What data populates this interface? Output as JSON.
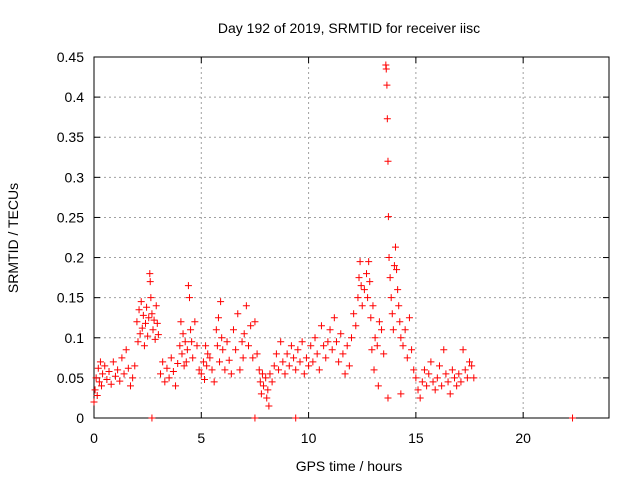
{
  "chart_data": {
    "type": "scatter",
    "title": "Day 192 of 2019, SRMTID for receiver iisc",
    "xlabel": "GPS time / hours",
    "ylabel": "SRMTID / TECUs",
    "xlim": [
      0,
      24
    ],
    "ylim": [
      0,
      0.45
    ],
    "xticks": [
      0,
      5,
      10,
      15,
      20
    ],
    "yticks": [
      0,
      0.05,
      0.1,
      0.15,
      0.2,
      0.25,
      0.3,
      0.35,
      0.4,
      0.45
    ],
    "grid": true,
    "marker": "+",
    "color": "#ff0000",
    "series": [
      {
        "name": "iisc",
        "points": [
          [
            0.0,
            0.02
          ],
          [
            0.05,
            0.035
          ],
          [
            0.1,
            0.05
          ],
          [
            0.15,
            0.028
          ],
          [
            0.2,
            0.062
          ],
          [
            0.25,
            0.045
          ],
          [
            0.3,
            0.07
          ],
          [
            0.35,
            0.04
          ],
          [
            0.4,
            0.055
          ],
          [
            0.5,
            0.065
          ],
          [
            0.6,
            0.048
          ],
          [
            0.7,
            0.058
          ],
          [
            0.8,
            0.042
          ],
          [
            0.9,
            0.07
          ],
          [
            1.0,
            0.052
          ],
          [
            1.1,
            0.06
          ],
          [
            1.2,
            0.046
          ],
          [
            1.3,
            0.075
          ],
          [
            1.4,
            0.055
          ],
          [
            1.5,
            0.085
          ],
          [
            1.6,
            0.062
          ],
          [
            1.7,
            0.04
          ],
          [
            1.8,
            0.05
          ],
          [
            1.9,
            0.065
          ],
          [
            2.0,
            0.12
          ],
          [
            2.05,
            0.095
          ],
          [
            2.1,
            0.135
          ],
          [
            2.15,
            0.105
          ],
          [
            2.2,
            0.145
          ],
          [
            2.25,
            0.112
          ],
          [
            2.3,
            0.128
          ],
          [
            2.35,
            0.09
          ],
          [
            2.4,
            0.118
          ],
          [
            2.45,
            0.138
          ],
          [
            2.5,
            0.102
          ],
          [
            2.55,
            0.125
          ],
          [
            2.6,
            0.18
          ],
          [
            2.62,
            0.17
          ],
          [
            2.65,
            0.15
          ],
          [
            2.7,
            0.13
          ],
          [
            2.75,
            0.11
          ],
          [
            2.8,
            0.122
          ],
          [
            2.85,
            0.098
          ],
          [
            2.9,
            0.14
          ],
          [
            2.95,
            0.118
          ],
          [
            3.0,
            0.104
          ],
          [
            2.7,
            0.0
          ],
          [
            3.1,
            0.055
          ],
          [
            3.2,
            0.07
          ],
          [
            3.3,
            0.045
          ],
          [
            3.4,
            0.062
          ],
          [
            3.5,
            0.05
          ],
          [
            3.6,
            0.075
          ],
          [
            3.7,
            0.058
          ],
          [
            3.8,
            0.04
          ],
          [
            3.9,
            0.068
          ],
          [
            4.0,
            0.09
          ],
          [
            4.05,
            0.12
          ],
          [
            4.1,
            0.08
          ],
          [
            4.15,
            0.105
          ],
          [
            4.2,
            0.065
          ],
          [
            4.25,
            0.095
          ],
          [
            4.3,
            0.07
          ],
          [
            4.35,
            0.085
          ],
          [
            4.4,
            0.165
          ],
          [
            4.45,
            0.15
          ],
          [
            4.5,
            0.11
          ],
          [
            4.55,
            0.095
          ],
          [
            4.6,
            0.075
          ],
          [
            4.7,
            0.12
          ],
          [
            4.8,
            0.09
          ],
          [
            4.9,
            0.06
          ],
          [
            5.0,
            0.055
          ],
          [
            5.1,
            0.07
          ],
          [
            5.15,
            0.048
          ],
          [
            5.2,
            0.09
          ],
          [
            5.25,
            0.065
          ],
          [
            5.3,
            0.08
          ],
          [
            5.4,
            0.075
          ],
          [
            5.5,
            0.06
          ],
          [
            5.6,
            0.045
          ],
          [
            5.7,
            0.11
          ],
          [
            5.75,
            0.09
          ],
          [
            5.8,
            0.125
          ],
          [
            5.85,
            0.07
          ],
          [
            5.9,
            0.145
          ],
          [
            5.95,
            0.1
          ],
          [
            6.0,
            0.085
          ],
          [
            6.1,
            0.06
          ],
          [
            6.2,
            0.095
          ],
          [
            6.3,
            0.072
          ],
          [
            6.4,
            0.055
          ],
          [
            6.5,
            0.11
          ],
          [
            6.6,
            0.085
          ],
          [
            6.7,
            0.13
          ],
          [
            6.8,
            0.06
          ],
          [
            6.9,
            0.095
          ],
          [
            6.95,
            0.075
          ],
          [
            7.0,
            0.105
          ],
          [
            7.1,
            0.14
          ],
          [
            7.2,
            0.09
          ],
          [
            7.3,
            0.115
          ],
          [
            7.4,
            0.075
          ],
          [
            7.5,
            0.12
          ],
          [
            7.6,
            0.08
          ],
          [
            7.7,
            0.06
          ],
          [
            7.75,
            0.045
          ],
          [
            7.8,
            0.03
          ],
          [
            7.85,
            0.055
          ],
          [
            7.9,
            0.04
          ],
          [
            8.0,
            0.05
          ],
          [
            8.05,
            0.025
          ],
          [
            8.1,
            0.035
          ],
          [
            8.15,
            0.015
          ],
          [
            8.2,
            0.055
          ],
          [
            8.3,
            0.045
          ],
          [
            8.4,
            0.065
          ],
          [
            8.5,
            0.08
          ],
          [
            8.6,
            0.06
          ],
          [
            8.7,
            0.095
          ],
          [
            8.8,
            0.07
          ],
          [
            8.9,
            0.055
          ],
          [
            7.5,
            0.0
          ],
          [
            9.0,
            0.08
          ],
          [
            9.1,
            0.065
          ],
          [
            9.2,
            0.09
          ],
          [
            9.3,
            0.075
          ],
          [
            9.4,
            0.06
          ],
          [
            9.5,
            0.085
          ],
          [
            9.6,
            0.07
          ],
          [
            9.7,
            0.095
          ],
          [
            9.8,
            0.055
          ],
          [
            9.9,
            0.075
          ],
          [
            9.4,
            0.0
          ],
          [
            10.0,
            0.065
          ],
          [
            10.1,
            0.09
          ],
          [
            10.2,
            0.07
          ],
          [
            10.3,
            0.1
          ],
          [
            10.4,
            0.08
          ],
          [
            10.5,
            0.06
          ],
          [
            10.6,
            0.115
          ],
          [
            10.7,
            0.09
          ],
          [
            10.8,
            0.075
          ],
          [
            10.9,
            0.095
          ],
          [
            11.0,
            0.11
          ],
          [
            11.1,
            0.085
          ],
          [
            11.2,
            0.125
          ],
          [
            11.3,
            0.095
          ],
          [
            11.4,
            0.07
          ],
          [
            11.5,
            0.105
          ],
          [
            11.6,
            0.08
          ],
          [
            11.7,
            0.055
          ],
          [
            11.8,
            0.09
          ],
          [
            11.9,
            0.065
          ],
          [
            12.0,
            0.1
          ],
          [
            12.1,
            0.13
          ],
          [
            12.2,
            0.115
          ],
          [
            12.3,
            0.15
          ],
          [
            12.35,
            0.175
          ],
          [
            12.4,
            0.195
          ],
          [
            12.45,
            0.165
          ],
          [
            12.5,
            0.14
          ],
          [
            12.6,
            0.16
          ],
          [
            12.7,
            0.18
          ],
          [
            12.75,
            0.15
          ],
          [
            12.8,
            0.195
          ],
          [
            12.85,
            0.17
          ],
          [
            12.9,
            0.125
          ],
          [
            12.95,
            0.085
          ],
          [
            13.0,
            0.14
          ],
          [
            13.05,
            0.06
          ],
          [
            13.1,
            0.1
          ],
          [
            13.2,
            0.09
          ],
          [
            13.25,
            0.04
          ],
          [
            13.3,
            0.12
          ],
          [
            13.4,
            0.11
          ],
          [
            13.5,
            0.08
          ],
          [
            13.6,
            0.44
          ],
          [
            13.62,
            0.435
          ],
          [
            13.65,
            0.415
          ],
          [
            13.67,
            0.373
          ],
          [
            13.7,
            0.32
          ],
          [
            13.72,
            0.251
          ],
          [
            13.75,
            0.2
          ],
          [
            13.8,
            0.175
          ],
          [
            13.85,
            0.15
          ],
          [
            13.9,
            0.13
          ],
          [
            13.95,
            0.11
          ],
          [
            13.7,
            0.025
          ],
          [
            14.0,
            0.19
          ],
          [
            14.05,
            0.213
          ],
          [
            14.1,
            0.185
          ],
          [
            14.15,
            0.16
          ],
          [
            14.2,
            0.14
          ],
          [
            14.25,
            0.12
          ],
          [
            14.3,
            0.1
          ],
          [
            14.4,
            0.09
          ],
          [
            14.5,
            0.11
          ],
          [
            14.6,
            0.075
          ],
          [
            14.7,
            0.125
          ],
          [
            14.8,
            0.085
          ],
          [
            14.9,
            0.06
          ],
          [
            14.3,
            0.03
          ],
          [
            15.0,
            0.05
          ],
          [
            15.1,
            0.035
          ],
          [
            15.2,
            0.025
          ],
          [
            15.3,
            0.045
          ],
          [
            15.4,
            0.06
          ],
          [
            15.5,
            0.04
          ],
          [
            15.6,
            0.055
          ],
          [
            15.7,
            0.07
          ],
          [
            15.8,
            0.045
          ],
          [
            15.9,
            0.035
          ],
          [
            16.0,
            0.05
          ],
          [
            16.1,
            0.065
          ],
          [
            16.2,
            0.04
          ],
          [
            16.3,
            0.085
          ],
          [
            16.4,
            0.055
          ],
          [
            16.5,
            0.045
          ],
          [
            16.6,
            0.03
          ],
          [
            16.7,
            0.06
          ],
          [
            16.8,
            0.05
          ],
          [
            16.9,
            0.04
          ],
          [
            17.0,
            0.055
          ],
          [
            17.1,
            0.045
          ],
          [
            17.2,
            0.085
          ],
          [
            17.3,
            0.06
          ],
          [
            17.4,
            0.05
          ],
          [
            17.5,
            0.07
          ],
          [
            17.6,
            0.065
          ],
          [
            17.7,
            0.05
          ],
          [
            22.3,
            0.0
          ]
        ]
      }
    ]
  }
}
